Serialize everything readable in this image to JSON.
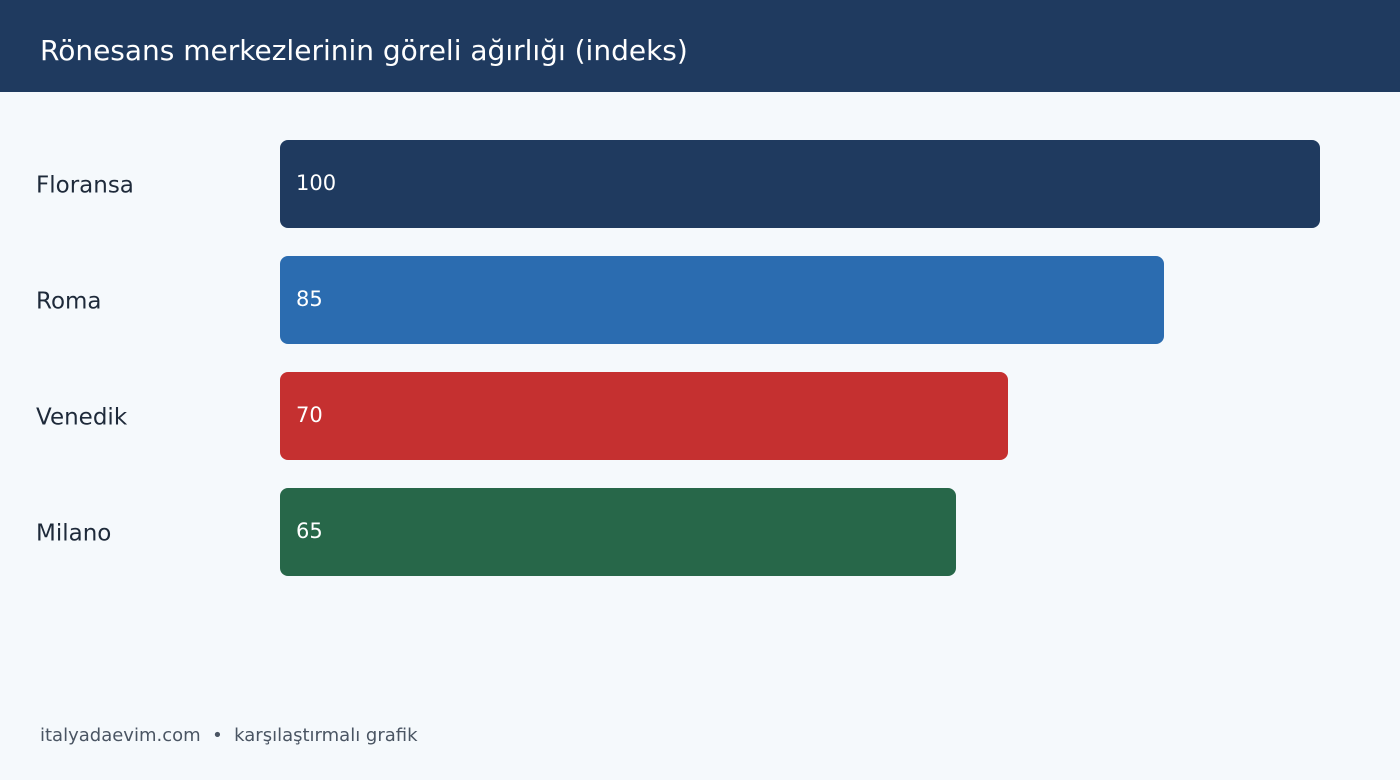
{
  "chart_data": {
    "type": "bar",
    "orientation": "horizontal",
    "title": "Rönesans merkezlerinin göreli ağırlığı (indeks)",
    "categories": [
      "Floransa",
      "Roma",
      "Venedik",
      "Milano"
    ],
    "values": [
      100,
      85,
      70,
      65
    ],
    "colors": [
      "#1f3a5f",
      "#2b6cb0",
      "#c53030",
      "#276749"
    ],
    "footer": "italyadaevim.com  •  karşılaştırmalı grafik"
  }
}
